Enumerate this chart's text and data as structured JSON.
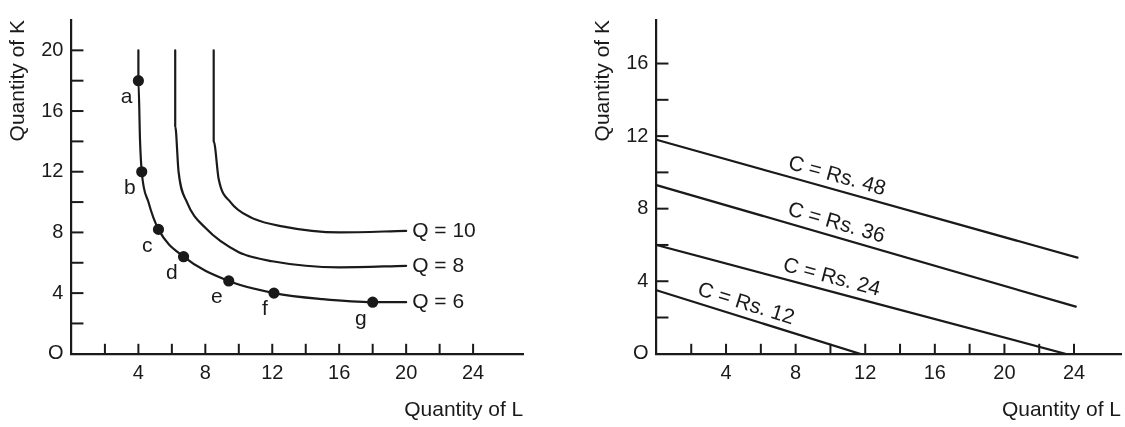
{
  "chart_data": [
    {
      "type": "line",
      "xlabel": "Quantity of L",
      "ylabel": "Quantity of K",
      "xlim": [
        0,
        27
      ],
      "ylim": [
        0,
        22
      ],
      "grid": false,
      "xticks": [
        {
          "value": 2,
          "label": null
        },
        4,
        {
          "value": 6,
          "label": null
        },
        8,
        {
          "value": 10,
          "label": null
        },
        12,
        {
          "value": 14,
          "label": null
        },
        16,
        {
          "value": 18,
          "label": null
        },
        20,
        {
          "value": 22,
          "label": null
        },
        24
      ],
      "yticks": [
        {
          "value": 0,
          "label": "O"
        },
        {
          "value": 2,
          "label": null
        },
        4,
        {
          "value": 6,
          "label": null
        },
        8,
        {
          "value": 10,
          "label": null
        },
        12,
        {
          "value": 14,
          "label": null
        },
        16,
        {
          "value": 18,
          "label": null
        },
        20
      ],
      "series": [
        {
          "name": "Q = 10",
          "marker": "none",
          "color": "#1a1a1a",
          "x": [
            8.5,
            8.5,
            8.8,
            9.5,
            10.7,
            12.6,
            16,
            20
          ],
          "values": [
            20,
            14,
            11.5,
            10,
            9,
            8.4,
            8,
            8.1
          ]
        },
        {
          "name": "Q = 8",
          "marker": "none",
          "color": "#1a1a1a",
          "x": [
            6.2,
            6.2,
            6.4,
            6.9,
            8,
            10,
            12,
            16,
            20
          ],
          "values": [
            20,
            15,
            12,
            10,
            8.3,
            6.7,
            6.1,
            5.7,
            5.8
          ]
        },
        {
          "name": "Q = 6",
          "marker": "none",
          "color": "#1a1a1a",
          "x": [
            4,
            4,
            4.1,
            4.2,
            4.6,
            5.2,
            6.7,
            9.4,
            12.1,
            15,
            18,
            20
          ],
          "values": [
            20,
            18,
            14,
            12,
            10,
            8.2,
            6.4,
            4.8,
            4,
            3.6,
            3.4,
            3.4
          ]
        },
        {
          "type": "scatter",
          "marker": "circle",
          "color": "#1a1a1a",
          "x": [
            4,
            4.2,
            5.2,
            6.7,
            9.4,
            12.1,
            18
          ],
          "values": [
            18,
            12,
            8.2,
            6.4,
            4.8,
            4,
            3.4
          ]
        }
      ],
      "annotations": [
        {
          "text": "a",
          "x": 4,
          "y": 18
        },
        {
          "text": "b",
          "x": 4.2,
          "y": 12
        },
        {
          "text": "c",
          "x": 5.2,
          "y": 8.2
        },
        {
          "text": "d",
          "x": 6.7,
          "y": 6.4
        },
        {
          "text": "e",
          "x": 9.4,
          "y": 4.8
        },
        {
          "text": "f",
          "x": 12.1,
          "y": 4
        },
        {
          "text": "g",
          "x": 18,
          "y": 3.4
        }
      ]
    },
    {
      "type": "line",
      "xlabel": "Quantity of L",
      "ylabel": "Quantity of K",
      "xlim": [
        0,
        26.7
      ],
      "ylim": [
        0,
        18.4
      ],
      "grid": false,
      "xticks": [
        {
          "value": 2,
          "label": null
        },
        4,
        {
          "value": 6,
          "label": null
        },
        8,
        {
          "value": 10,
          "label": null
        },
        12,
        {
          "value": 14,
          "label": null
        },
        16,
        {
          "value": 18,
          "label": null
        },
        20,
        {
          "value": 22,
          "label": null
        },
        24
      ],
      "yticks": [
        {
          "value": 0,
          "label": "O"
        },
        {
          "value": 2,
          "label": null
        },
        4,
        {
          "value": 6,
          "label": null
        },
        8,
        {
          "value": 10,
          "label": null
        },
        12,
        {
          "value": 14,
          "label": null
        },
        16
      ],
      "series": [
        {
          "name": "C = Rs. 48",
          "marker": "none",
          "color": "#1a1a1a",
          "x": [
            0,
            24.2
          ],
          "values": [
            11.8,
            5.3
          ]
        },
        {
          "name": "C = Rs. 36",
          "marker": "none",
          "color": "#1a1a1a",
          "x": [
            0,
            24.1
          ],
          "values": [
            9.3,
            2.6
          ]
        },
        {
          "name": "C = Rs. 24",
          "marker": "none",
          "color": "#1a1a1a",
          "x": [
            0,
            23.5
          ],
          "values": [
            6,
            0
          ]
        },
        {
          "name": "C = Rs. 12",
          "marker": "none",
          "color": "#1a1a1a",
          "x": [
            0,
            11.7
          ],
          "values": [
            3.5,
            0
          ]
        }
      ]
    }
  ]
}
